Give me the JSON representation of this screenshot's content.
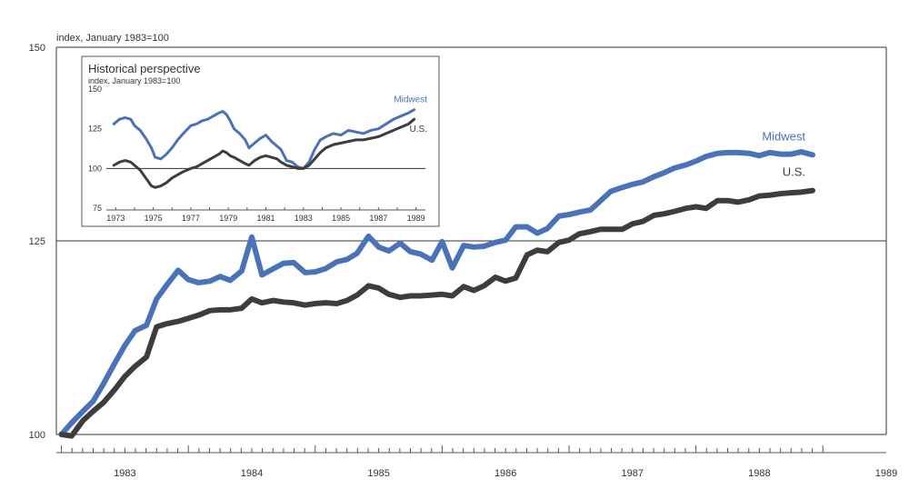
{
  "chart_data": [
    {
      "type": "line",
      "title": "",
      "ylabel": "index, January 1983=100",
      "xlabel": "",
      "ylim": [
        100,
        150
      ],
      "yticks": [
        100,
        125,
        150
      ],
      "xlim": [
        1982.96,
        1989.5
      ],
      "xticks": [
        "1983",
        "1984",
        "1985",
        "1986",
        "1987",
        "1988",
        "1989"
      ],
      "grid": "horizontal",
      "series": [
        {
          "name": "Midwest",
          "color": "#4a72b8",
          "x": [
            1983.0,
            1983.08,
            1983.17,
            1983.25,
            1983.33,
            1983.42,
            1983.5,
            1983.58,
            1983.67,
            1983.75,
            1983.83,
            1983.92,
            1984.0,
            1984.08,
            1984.17,
            1984.25,
            1984.33,
            1984.42,
            1984.5,
            1984.58,
            1984.67,
            1984.75,
            1984.83,
            1984.92,
            1985.0,
            1985.08,
            1985.17,
            1985.25,
            1985.33,
            1985.42,
            1985.5,
            1985.58,
            1985.67,
            1985.75,
            1985.83,
            1985.92,
            1986.0,
            1986.08,
            1986.17,
            1986.25,
            1986.33,
            1986.42,
            1986.5,
            1986.58,
            1986.67,
            1986.75,
            1986.83,
            1986.92,
            1987.0,
            1987.08,
            1987.17,
            1987.25,
            1987.33,
            1987.42,
            1987.5,
            1987.58,
            1987.67,
            1987.75,
            1987.83,
            1987.92,
            1988.0,
            1988.08,
            1988.17,
            1988.25,
            1988.33,
            1988.42,
            1988.5,
            1988.58,
            1988.67,
            1988.75,
            1988.83,
            1988.92
          ],
          "values": [
            100.0,
            101.5,
            103.0,
            104.3,
            106.5,
            109.2,
            111.5,
            113.4,
            114.1,
            117.5,
            119.3,
            121.2,
            120.0,
            119.6,
            119.8,
            120.4,
            119.9,
            121.1,
            125.5,
            120.6,
            121.4,
            122.1,
            122.2,
            120.9,
            121.0,
            121.4,
            122.3,
            122.6,
            123.4,
            125.6,
            124.2,
            123.7,
            124.7,
            123.6,
            123.3,
            122.5,
            124.9,
            121.5,
            124.4,
            124.2,
            124.3,
            124.8,
            125.1,
            126.8,
            126.8,
            126.0,
            126.6,
            128.2,
            128.4,
            128.7,
            129.0,
            130.2,
            131.4,
            131.9,
            132.3,
            132.6,
            133.3,
            133.8,
            134.4,
            134.8,
            135.3,
            135.9,
            136.3,
            136.4,
            136.4,
            136.3,
            136.0,
            136.4,
            136.2,
            136.2,
            136.5,
            136.1
          ],
          "label": "Midwest"
        },
        {
          "name": "U.S.",
          "color": "#3d3d3d",
          "x": [
            1983.0,
            1983.08,
            1983.17,
            1983.25,
            1983.33,
            1983.42,
            1983.5,
            1983.58,
            1983.67,
            1983.75,
            1983.83,
            1983.92,
            1984.0,
            1984.08,
            1984.17,
            1984.25,
            1984.33,
            1984.42,
            1984.5,
            1984.58,
            1984.67,
            1984.75,
            1984.83,
            1984.92,
            1985.0,
            1985.08,
            1985.17,
            1985.25,
            1985.33,
            1985.42,
            1985.5,
            1985.58,
            1985.67,
            1985.75,
            1985.83,
            1985.92,
            1986.0,
            1986.08,
            1986.17,
            1986.25,
            1986.33,
            1986.42,
            1986.5,
            1986.58,
            1986.67,
            1986.75,
            1986.83,
            1986.92,
            1987.0,
            1987.08,
            1987.17,
            1987.25,
            1987.33,
            1987.42,
            1987.5,
            1987.58,
            1987.67,
            1987.75,
            1987.83,
            1987.92,
            1988.0,
            1988.08,
            1988.17,
            1988.25,
            1988.33,
            1988.42,
            1988.5,
            1988.58,
            1988.67,
            1988.75,
            1988.83,
            1988.92
          ],
          "values": [
            100.0,
            99.8,
            101.8,
            103.0,
            104.1,
            105.8,
            107.5,
            108.8,
            110.0,
            113.9,
            114.3,
            114.6,
            115.0,
            115.4,
            116.0,
            116.1,
            116.1,
            116.3,
            117.5,
            117.0,
            117.3,
            117.1,
            117.0,
            116.7,
            116.9,
            117.0,
            116.9,
            117.3,
            118.0,
            119.2,
            118.9,
            118.1,
            117.7,
            117.9,
            117.9,
            118.0,
            118.1,
            117.9,
            119.1,
            118.6,
            119.2,
            120.3,
            119.8,
            120.2,
            123.2,
            123.8,
            123.6,
            124.8,
            125.1,
            125.9,
            126.2,
            126.5,
            126.5,
            126.5,
            127.2,
            127.5,
            128.3,
            128.5,
            128.8,
            129.2,
            129.4,
            129.2,
            130.2,
            130.2,
            130.0,
            130.3,
            130.8,
            130.9,
            131.1,
            131.2,
            131.3,
            131.5
          ],
          "label": "U.S."
        }
      ]
    },
    {
      "type": "line",
      "title": "Historical perspective",
      "ylabel": "index, January 1983=100",
      "xlabel": "",
      "ylim": [
        75,
        150
      ],
      "yticks": [
        75,
        100,
        125,
        150
      ],
      "xlim": [
        1972.5,
        1989.5
      ],
      "xticks": [
        "1973",
        "1975",
        "1977",
        "1979",
        "1981",
        "1983",
        "1985",
        "1987",
        "1989"
      ],
      "series": [
        {
          "name": "Midwest",
          "color": "#4a72b8",
          "x": [
            1972.9,
            1973.2,
            1973.5,
            1973.8,
            1974.0,
            1974.3,
            1974.6,
            1974.9,
            1975.1,
            1975.4,
            1975.7,
            1976.0,
            1976.3,
            1976.6,
            1977.0,
            1977.3,
            1977.6,
            1977.9,
            1978.2,
            1978.5,
            1978.7,
            1978.9,
            1979.1,
            1979.3,
            1979.6,
            1979.9,
            1980.1,
            1980.4,
            1980.7,
            1981.0,
            1981.3,
            1981.6,
            1981.8,
            1982.1,
            1982.4,
            1982.7,
            1983.0,
            1983.3,
            1983.6,
            1983.9,
            1984.2,
            1984.6,
            1985.0,
            1985.4,
            1985.8,
            1986.2,
            1986.6,
            1987.0,
            1987.4,
            1987.8,
            1988.2,
            1988.6,
            1988.9
          ],
          "values": [
            128,
            131,
            132,
            131,
            127,
            124,
            119,
            113,
            107,
            106,
            109,
            113,
            118,
            122,
            127,
            128,
            130,
            131,
            133,
            135,
            136,
            134,
            130,
            125,
            122,
            118,
            113,
            116,
            119,
            121,
            117,
            114,
            112,
            105,
            104,
            101,
            100,
            104,
            112,
            118,
            120,
            122,
            121,
            124,
            123,
            122,
            124,
            125,
            128,
            131,
            133,
            135,
            137
          ]
        },
        {
          "name": "U.S.",
          "color": "#3d3d3d",
          "x": [
            1972.9,
            1973.2,
            1973.5,
            1973.8,
            1974.0,
            1974.3,
            1974.6,
            1974.9,
            1975.1,
            1975.4,
            1975.7,
            1976.0,
            1976.3,
            1976.6,
            1977.0,
            1977.3,
            1977.6,
            1977.9,
            1978.2,
            1978.5,
            1978.7,
            1978.9,
            1979.1,
            1979.3,
            1979.6,
            1979.9,
            1980.1,
            1980.4,
            1980.7,
            1981.0,
            1981.3,
            1981.6,
            1981.8,
            1982.1,
            1982.4,
            1982.7,
            1983.0,
            1983.3,
            1983.6,
            1983.9,
            1984.2,
            1984.6,
            1985.0,
            1985.4,
            1985.8,
            1986.2,
            1986.6,
            1987.0,
            1987.4,
            1987.8,
            1988.2,
            1988.6,
            1988.9
          ],
          "values": [
            102,
            104,
            105,
            104,
            102,
            99,
            94,
            89,
            88,
            89,
            91,
            94,
            96,
            98,
            100,
            101,
            103,
            105,
            107,
            109,
            111,
            110,
            108,
            107,
            105,
            103,
            102,
            105,
            107,
            108,
            107,
            106,
            104,
            102,
            101,
            100,
            100,
            102,
            106,
            110,
            113,
            115,
            116,
            117,
            118,
            118,
            119,
            120,
            122,
            124,
            126,
            128,
            131
          ]
        }
      ]
    }
  ]
}
